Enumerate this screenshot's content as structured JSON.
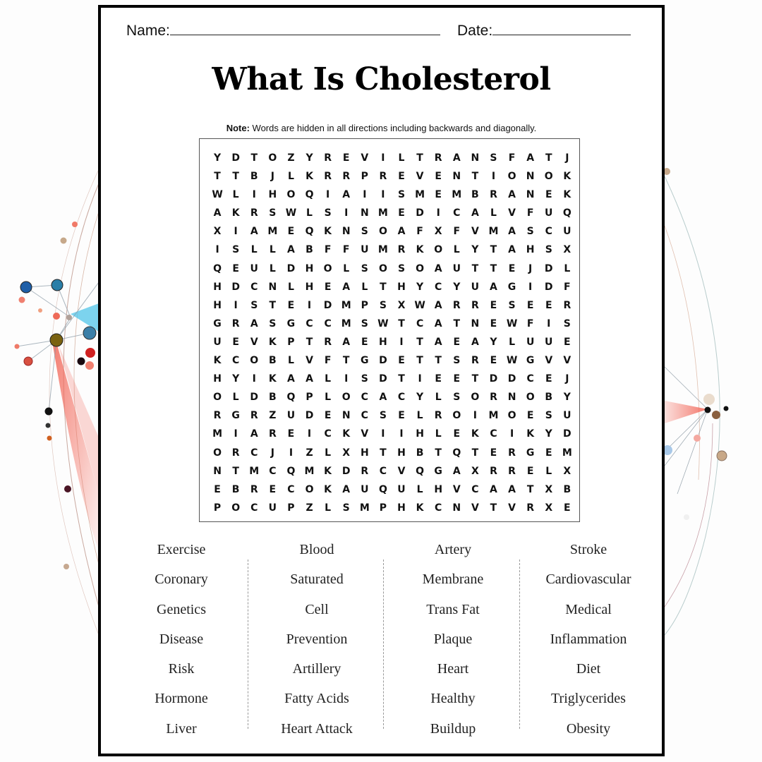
{
  "header": {
    "name_label": "Name:",
    "date_label": "Date:"
  },
  "title": "What Is Cholesterol",
  "note": {
    "label": "Note:",
    "text": " Words are hidden in all directions including backwards and diagonally."
  },
  "grid": [
    "YDTOZYREVILTRANSFATJ",
    "TTBJLKRRPREVENTIONOK",
    "WLIHOQIAIISMEMBRANEK",
    "AKRSWLSINMEDICALVFUQ",
    "XIAMEQKNSOAFXFVMASCU",
    "ISLLABFFUMRKOLYTAHSX",
    "QEULDHOLSOSOAUTTEJDL",
    "HDCNLHEALTHYCYUAGIDF",
    "HISTEIDMPSXWARRESEER",
    "GRASGCCMSWTCATNEWFIS",
    "UEVKPTRAEHITAEAYLUUE",
    "KCOBLVFTGDETTSREWGVV",
    "HYIKAALISDTIEETDDCEJ",
    "OLDBQPLOCACYLSORNOBY",
    "RGRZUDENCSELROIMOESU",
    "MIAREICKVIIHLEKCIKYD",
    "ORCJIZLXHTHBTQTERGEM",
    "NTMCQMKDRCVQGAXRRELX",
    "EBRECOKAUQULHVCAATXB",
    "POCUPZLSMPHKCNVTVRXE"
  ],
  "word_columns": [
    [
      "Exercise",
      "Coronary",
      "Genetics",
      "Disease",
      "Risk",
      "Hormone",
      "Liver"
    ],
    [
      "Blood",
      "Saturated",
      "Cell",
      "Prevention",
      "Artillery",
      "Fatty Acids",
      "Heart Attack"
    ],
    [
      "Artery",
      "Membrane",
      "Trans Fat",
      "Plaque",
      "Heart",
      "Healthy",
      "Buildup"
    ],
    [
      "Stroke",
      "Cardiovascular",
      "Medical",
      "Inflammation",
      "Diet",
      "Triglycerides",
      "Obesity"
    ]
  ],
  "colors": {
    "page_border": "#000000",
    "grid_border": "#555555",
    "text": "#111111",
    "accent_red": "#f07060",
    "accent_blue": "#2f7fb8"
  }
}
